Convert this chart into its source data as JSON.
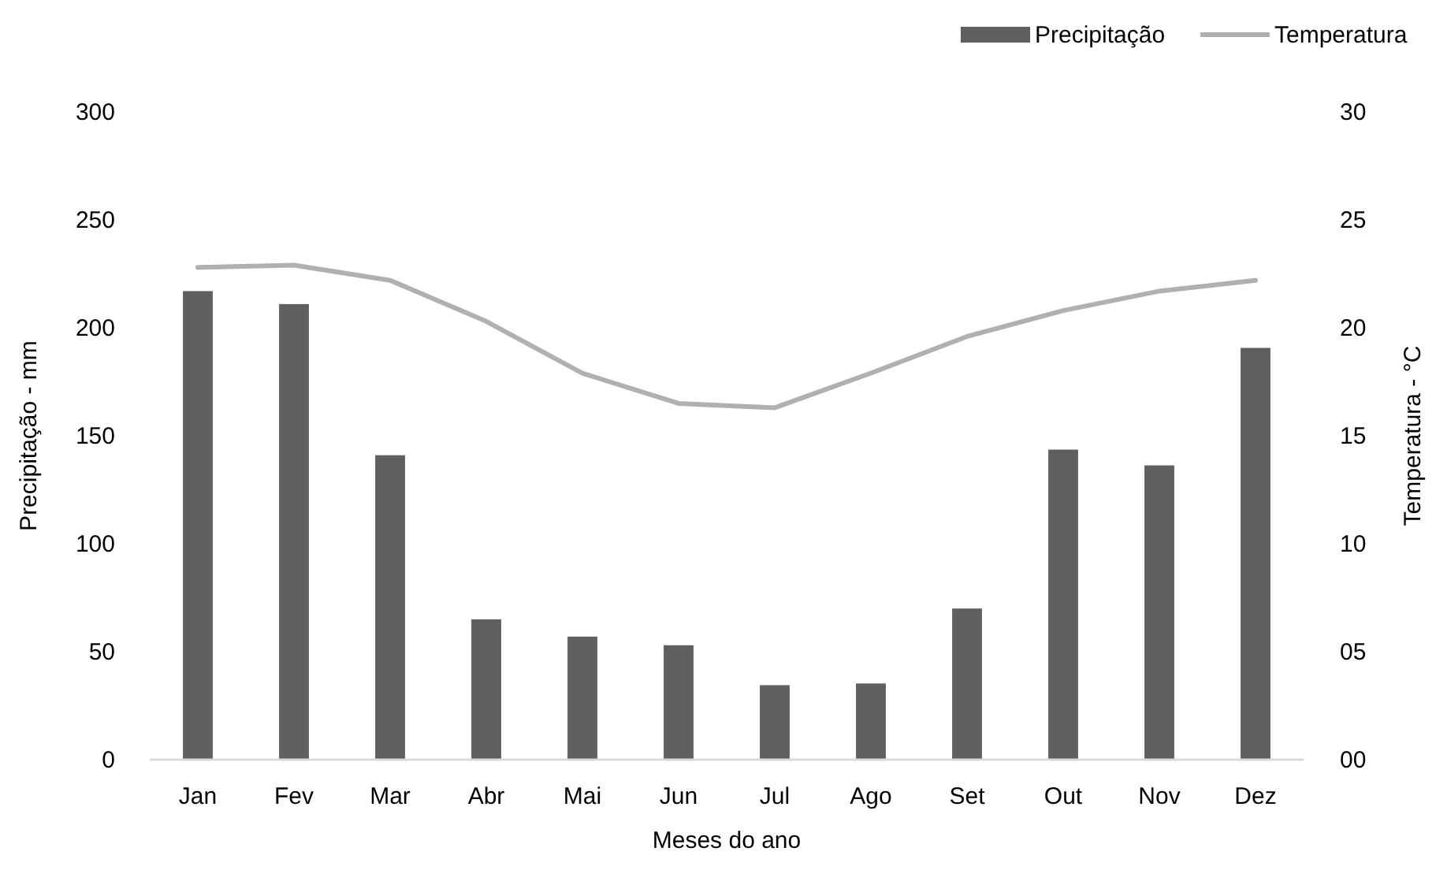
{
  "chart_data": {
    "type": "bar",
    "xlabel": "Meses do ano",
    "ylabel": "Precipitação - mm",
    "y2label": "Temperatura - °C",
    "categories": [
      "Jan",
      "Fev",
      "Mar",
      "Abr",
      "Mai",
      "Jun",
      "Jul",
      "Ago",
      "Set",
      "Out",
      "Nov",
      "Dez"
    ],
    "series": [
      {
        "name": "Precipitação",
        "color": "#5f5f5f",
        "values": [
          217,
          211,
          141,
          65,
          57,
          53,
          34.5,
          35.3,
          70,
          143.6,
          136.3,
          190.7
        ]
      },
      {
        "name": "Temperatura",
        "type": "line",
        "axis": "y2",
        "color": "#b0b0b0",
        "values": [
          22.8,
          22.9,
          22.2,
          20.3,
          17.9,
          16.5,
          16.3,
          17.9,
          19.6,
          20.8,
          21.7,
          22.2
        ]
      }
    ],
    "ylim": [
      0,
      300
    ],
    "yticks": [
      0,
      50,
      100,
      150,
      200,
      250,
      300
    ],
    "y2lim": [
      0,
      30
    ],
    "y2ticks": [
      {
        "value": 0,
        "label": "00"
      },
      {
        "value": 5,
        "label": "05"
      },
      10,
      15,
      20,
      25,
      30
    ],
    "legend": "top right",
    "grid": false
  }
}
